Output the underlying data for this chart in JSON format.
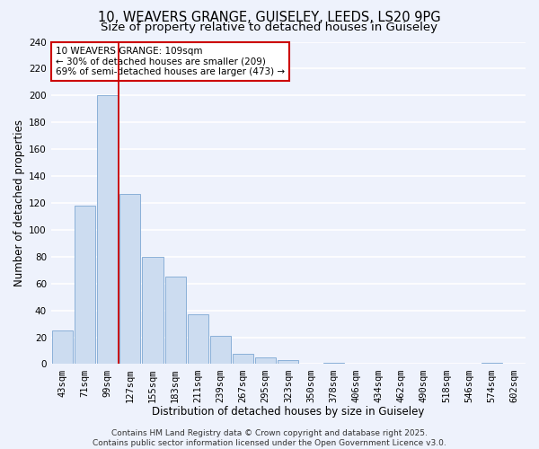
{
  "title_line1": "10, WEAVERS GRANGE, GUISELEY, LEEDS, LS20 9PG",
  "title_line2": "Size of property relative to detached houses in Guiseley",
  "xlabel": "Distribution of detached houses by size in Guiseley",
  "ylabel": "Number of detached properties",
  "bar_labels": [
    "43sqm",
    "71sqm",
    "99sqm",
    "127sqm",
    "155sqm",
    "183sqm",
    "211sqm",
    "239sqm",
    "267sqm",
    "295sqm",
    "323sqm",
    "350sqm",
    "378sqm",
    "406sqm",
    "434sqm",
    "462sqm",
    "490sqm",
    "518sqm",
    "546sqm",
    "574sqm",
    "602sqm"
  ],
  "bar_heights": [
    25,
    118,
    200,
    127,
    80,
    65,
    37,
    21,
    8,
    5,
    3,
    0,
    1,
    0,
    0,
    0,
    0,
    0,
    0,
    1,
    0
  ],
  "bar_color": "#ccdcf0",
  "bar_edge_color": "#8ab0d8",
  "vline_x_index": 2.5,
  "vline_color": "#cc0000",
  "ylim": [
    0,
    240
  ],
  "yticks": [
    0,
    20,
    40,
    60,
    80,
    100,
    120,
    140,
    160,
    180,
    200,
    220,
    240
  ],
  "annotation_title": "10 WEAVERS GRANGE: 109sqm",
  "annotation_line2": "← 30% of detached houses are smaller (209)",
  "annotation_line3": "69% of semi-detached houses are larger (473) →",
  "footer_line1": "Contains HM Land Registry data © Crown copyright and database right 2025.",
  "footer_line2": "Contains public sector information licensed under the Open Government Licence v3.0.",
  "background_color": "#eef2fc",
  "grid_color": "#ffffff",
  "title_fontsize": 10.5,
  "subtitle_fontsize": 9.5,
  "axis_label_fontsize": 8.5,
  "tick_fontsize": 7.5,
  "annotation_fontsize": 7.5,
  "footer_fontsize": 6.5
}
